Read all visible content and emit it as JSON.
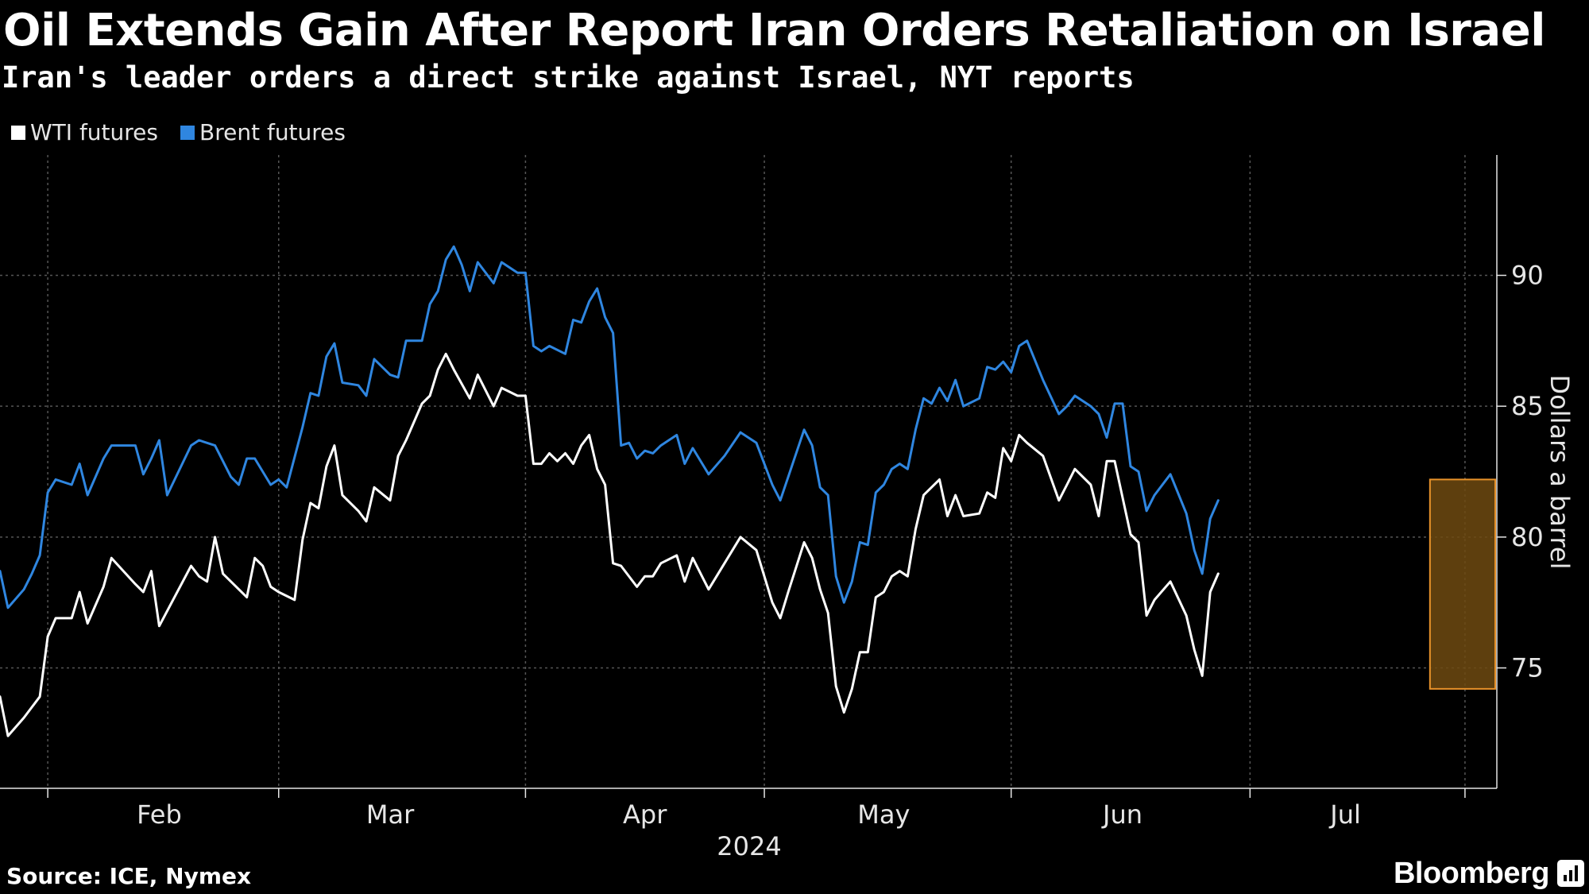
{
  "title": "Oil Extends Gain After Report Iran Orders Retaliation on Israel",
  "subtitle": "Iran's leader orders a direct strike against Israel, NYT reports",
  "source": "Source: ICE, Nymex",
  "brand": "Bloomberg",
  "colors": {
    "wti": "#ffffff",
    "brent": "#2f86e0",
    "highlight_fill": "#6e4a10",
    "highlight_stroke": "#e8922a",
    "grid": "#555555",
    "axis_text": "#e6e6e6"
  },
  "chart_data": {
    "type": "line",
    "title": "Oil Extends Gain After Report Iran Orders Retaliation on Israel",
    "subtitle": "Iran's leader orders a direct strike against Israel, NYT reports",
    "ylabel": "Dollars a barrel",
    "xlabel": "2024",
    "x_ticks": [
      "Feb",
      "Mar",
      "Apr",
      "May",
      "Jun",
      "Jul"
    ],
    "y_ticks": [
      75,
      80,
      85,
      90
    ],
    "ylim": [
      70.4,
      94.6
    ],
    "xlim": [
      "2024-01-26",
      "2024-08-01"
    ],
    "grid": true,
    "legend_position": "top-left",
    "highlight": {
      "x_start": "2024-07-24",
      "x_end": "2024-07-31",
      "y_min": 74.2,
      "y_max": 82.2
    },
    "series": [
      {
        "name": "WTI futures",
        "values": [
          [
            "2024-01-26",
            73.9
          ],
          [
            "2024-01-27",
            72.4
          ],
          [
            "2024-01-29",
            73.1
          ],
          [
            "2024-01-30",
            73.5
          ],
          [
            "2024-01-31",
            73.9
          ],
          [
            "2024-02-01",
            76.2
          ],
          [
            "2024-02-02",
            76.9
          ],
          [
            "2024-02-04",
            76.9
          ],
          [
            "2024-02-05",
            77.9
          ],
          [
            "2024-02-06",
            76.7
          ],
          [
            "2024-02-08",
            78.1
          ],
          [
            "2024-02-09",
            79.2
          ],
          [
            "2024-02-12",
            78.2
          ],
          [
            "2024-02-13",
            77.9
          ],
          [
            "2024-02-14",
            78.7
          ],
          [
            "2024-02-15",
            76.6
          ],
          [
            "2024-02-19",
            78.9
          ],
          [
            "2024-02-20",
            78.5
          ],
          [
            "2024-02-21",
            78.3
          ],
          [
            "2024-02-22",
            80.0
          ],
          [
            "2024-02-23",
            78.6
          ],
          [
            "2024-02-26",
            77.7
          ],
          [
            "2024-02-27",
            79.2
          ],
          [
            "2024-02-28",
            78.9
          ],
          [
            "2024-02-29",
            78.1
          ],
          [
            "2024-03-01",
            77.9
          ],
          [
            "2024-03-03",
            77.6
          ],
          [
            "2024-03-04",
            79.9
          ],
          [
            "2024-03-05",
            81.3
          ],
          [
            "2024-03-06",
            81.1
          ],
          [
            "2024-03-07",
            82.7
          ],
          [
            "2024-03-08",
            83.5
          ],
          [
            "2024-03-09",
            81.6
          ],
          [
            "2024-03-11",
            81.0
          ],
          [
            "2024-03-12",
            80.6
          ],
          [
            "2024-03-13",
            81.9
          ],
          [
            "2024-03-15",
            81.4
          ],
          [
            "2024-03-16",
            83.1
          ],
          [
            "2024-03-17",
            83.7
          ],
          [
            "2024-03-19",
            85.1
          ],
          [
            "2024-03-20",
            85.4
          ],
          [
            "2024-03-21",
            86.4
          ],
          [
            "2024-03-22",
            87.0
          ],
          [
            "2024-03-23",
            86.4
          ],
          [
            "2024-03-25",
            85.3
          ],
          [
            "2024-03-26",
            86.2
          ],
          [
            "2024-03-28",
            85.0
          ],
          [
            "2024-03-29",
            85.7
          ],
          [
            "2024-03-31",
            85.4
          ],
          [
            "2024-04-01",
            85.4
          ],
          [
            "2024-04-02",
            82.8
          ],
          [
            "2024-04-03",
            82.8
          ],
          [
            "2024-04-04",
            83.2
          ],
          [
            "2024-04-05",
            82.9
          ],
          [
            "2024-04-06",
            83.2
          ],
          [
            "2024-04-07",
            82.8
          ],
          [
            "2024-04-08",
            83.5
          ],
          [
            "2024-04-09",
            83.9
          ],
          [
            "2024-04-10",
            82.6
          ],
          [
            "2024-04-11",
            82.0
          ],
          [
            "2024-04-12",
            79.0
          ],
          [
            "2024-04-13",
            78.9
          ],
          [
            "2024-04-15",
            78.1
          ],
          [
            "2024-04-16",
            78.5
          ],
          [
            "2024-04-17",
            78.5
          ],
          [
            "2024-04-18",
            79.0
          ],
          [
            "2024-04-20",
            79.3
          ],
          [
            "2024-04-21",
            78.3
          ],
          [
            "2024-04-22",
            79.2
          ],
          [
            "2024-04-24",
            78.0
          ],
          [
            "2024-04-26",
            79.0
          ],
          [
            "2024-04-28",
            80.0
          ],
          [
            "2024-04-30",
            79.5
          ],
          [
            "2024-05-02",
            77.5
          ],
          [
            "2024-05-03",
            76.9
          ],
          [
            "2024-05-04",
            77.9
          ],
          [
            "2024-05-06",
            79.8
          ],
          [
            "2024-05-07",
            79.2
          ],
          [
            "2024-05-08",
            78.0
          ],
          [
            "2024-05-09",
            77.1
          ],
          [
            "2024-05-10",
            74.3
          ],
          [
            "2024-05-11",
            73.3
          ],
          [
            "2024-05-12",
            74.2
          ],
          [
            "2024-05-13",
            75.6
          ],
          [
            "2024-05-14",
            75.6
          ],
          [
            "2024-05-15",
            77.7
          ],
          [
            "2024-05-16",
            77.9
          ],
          [
            "2024-05-17",
            78.5
          ],
          [
            "2024-05-18",
            78.7
          ],
          [
            "2024-05-19",
            78.5
          ],
          [
            "2024-05-20",
            80.3
          ],
          [
            "2024-05-21",
            81.6
          ],
          [
            "2024-05-23",
            82.2
          ],
          [
            "2024-05-24",
            80.8
          ],
          [
            "2024-05-25",
            81.6
          ],
          [
            "2024-05-26",
            80.8
          ],
          [
            "2024-05-28",
            80.9
          ],
          [
            "2024-05-29",
            81.7
          ],
          [
            "2024-05-30",
            81.5
          ],
          [
            "2024-05-31",
            83.4
          ],
          [
            "2024-06-01",
            82.9
          ],
          [
            "2024-06-02",
            83.9
          ],
          [
            "2024-06-03",
            83.6
          ],
          [
            "2024-06-05",
            83.1
          ],
          [
            "2024-06-07",
            81.4
          ],
          [
            "2024-06-08",
            82.0
          ],
          [
            "2024-06-09",
            82.6
          ],
          [
            "2024-06-11",
            82.0
          ],
          [
            "2024-06-12",
            80.8
          ],
          [
            "2024-06-13",
            82.9
          ],
          [
            "2024-06-14",
            82.9
          ],
          [
            "2024-06-16",
            80.1
          ],
          [
            "2024-06-17",
            79.8
          ],
          [
            "2024-06-18",
            77.0
          ],
          [
            "2024-06-19",
            77.6
          ],
          [
            "2024-06-21",
            78.3
          ],
          [
            "2024-06-23",
            77.0
          ],
          [
            "2024-06-24",
            75.7
          ],
          [
            "2024-06-25",
            74.7
          ],
          [
            "2024-06-26",
            77.9
          ],
          [
            "2024-06-27",
            78.6
          ]
        ]
      },
      {
        "name": "Brent futures",
        "values": [
          [
            "2024-01-26",
            78.7
          ],
          [
            "2024-01-27",
            77.3
          ],
          [
            "2024-01-29",
            78.0
          ],
          [
            "2024-01-30",
            78.6
          ],
          [
            "2024-01-31",
            79.3
          ],
          [
            "2024-02-01",
            81.7
          ],
          [
            "2024-02-02",
            82.2
          ],
          [
            "2024-02-04",
            82.0
          ],
          [
            "2024-02-05",
            82.8
          ],
          [
            "2024-02-06",
            81.6
          ],
          [
            "2024-02-08",
            83.0
          ],
          [
            "2024-02-09",
            83.5
          ],
          [
            "2024-02-12",
            83.5
          ],
          [
            "2024-02-13",
            82.4
          ],
          [
            "2024-02-14",
            83.0
          ],
          [
            "2024-02-15",
            83.7
          ],
          [
            "2024-02-16",
            81.6
          ],
          [
            "2024-02-19",
            83.5
          ],
          [
            "2024-02-20",
            83.7
          ],
          [
            "2024-02-22",
            83.5
          ],
          [
            "2024-02-24",
            82.3
          ],
          [
            "2024-02-25",
            82.0
          ],
          [
            "2024-02-26",
            83.0
          ],
          [
            "2024-02-27",
            83.0
          ],
          [
            "2024-02-29",
            82.0
          ],
          [
            "2024-03-01",
            82.2
          ],
          [
            "2024-03-02",
            81.9
          ],
          [
            "2024-03-04",
            84.2
          ],
          [
            "2024-03-05",
            85.5
          ],
          [
            "2024-03-06",
            85.4
          ],
          [
            "2024-03-07",
            86.9
          ],
          [
            "2024-03-08",
            87.4
          ],
          [
            "2024-03-09",
            85.9
          ],
          [
            "2024-03-11",
            85.8
          ],
          [
            "2024-03-12",
            85.4
          ],
          [
            "2024-03-13",
            86.8
          ],
          [
            "2024-03-15",
            86.2
          ],
          [
            "2024-03-16",
            86.1
          ],
          [
            "2024-03-17",
            87.5
          ],
          [
            "2024-03-19",
            87.5
          ],
          [
            "2024-03-20",
            88.9
          ],
          [
            "2024-03-21",
            89.4
          ],
          [
            "2024-03-22",
            90.6
          ],
          [
            "2024-03-23",
            91.1
          ],
          [
            "2024-03-24",
            90.4
          ],
          [
            "2024-03-25",
            89.4
          ],
          [
            "2024-03-26",
            90.5
          ],
          [
            "2024-03-28",
            89.7
          ],
          [
            "2024-03-29",
            90.5
          ],
          [
            "2024-03-31",
            90.1
          ],
          [
            "2024-04-01",
            90.1
          ],
          [
            "2024-04-02",
            87.3
          ],
          [
            "2024-04-03",
            87.1
          ],
          [
            "2024-04-04",
            87.3
          ],
          [
            "2024-04-06",
            87.0
          ],
          [
            "2024-04-07",
            88.3
          ],
          [
            "2024-04-08",
            88.2
          ],
          [
            "2024-04-09",
            89.0
          ],
          [
            "2024-04-10",
            89.5
          ],
          [
            "2024-04-11",
            88.4
          ],
          [
            "2024-04-12",
            87.8
          ],
          [
            "2024-04-13",
            83.5
          ],
          [
            "2024-04-14",
            83.6
          ],
          [
            "2024-04-15",
            83.0
          ],
          [
            "2024-04-16",
            83.3
          ],
          [
            "2024-04-17",
            83.2
          ],
          [
            "2024-04-18",
            83.5
          ],
          [
            "2024-04-20",
            83.9
          ],
          [
            "2024-04-21",
            82.8
          ],
          [
            "2024-04-22",
            83.4
          ],
          [
            "2024-04-24",
            82.4
          ],
          [
            "2024-04-26",
            83.1
          ],
          [
            "2024-04-28",
            84.0
          ],
          [
            "2024-04-30",
            83.6
          ],
          [
            "2024-05-02",
            82.0
          ],
          [
            "2024-05-03",
            81.4
          ],
          [
            "2024-05-04",
            82.3
          ],
          [
            "2024-05-06",
            84.1
          ],
          [
            "2024-05-07",
            83.5
          ],
          [
            "2024-05-08",
            81.9
          ],
          [
            "2024-05-09",
            81.6
          ],
          [
            "2024-05-10",
            78.5
          ],
          [
            "2024-05-11",
            77.5
          ],
          [
            "2024-05-12",
            78.3
          ],
          [
            "2024-05-13",
            79.8
          ],
          [
            "2024-05-14",
            79.7
          ],
          [
            "2024-05-15",
            81.7
          ],
          [
            "2024-05-16",
            82.0
          ],
          [
            "2024-05-17",
            82.6
          ],
          [
            "2024-05-18",
            82.8
          ],
          [
            "2024-05-19",
            82.6
          ],
          [
            "2024-05-20",
            84.1
          ],
          [
            "2024-05-21",
            85.3
          ],
          [
            "2024-05-22",
            85.1
          ],
          [
            "2024-05-23",
            85.7
          ],
          [
            "2024-05-24",
            85.2
          ],
          [
            "2024-05-25",
            86.0
          ],
          [
            "2024-05-26",
            85.0
          ],
          [
            "2024-05-28",
            85.3
          ],
          [
            "2024-05-29",
            86.5
          ],
          [
            "2024-05-30",
            86.4
          ],
          [
            "2024-05-31",
            86.7
          ],
          [
            "2024-06-01",
            86.3
          ],
          [
            "2024-06-02",
            87.3
          ],
          [
            "2024-06-03",
            87.5
          ],
          [
            "2024-06-05",
            86.0
          ],
          [
            "2024-06-07",
            84.7
          ],
          [
            "2024-06-08",
            85.0
          ],
          [
            "2024-06-09",
            85.4
          ],
          [
            "2024-06-11",
            85.0
          ],
          [
            "2024-06-12",
            84.7
          ],
          [
            "2024-06-13",
            83.8
          ],
          [
            "2024-06-14",
            85.1
          ],
          [
            "2024-06-15",
            85.1
          ],
          [
            "2024-06-16",
            82.7
          ],
          [
            "2024-06-17",
            82.5
          ],
          [
            "2024-06-18",
            81.0
          ],
          [
            "2024-06-19",
            81.6
          ],
          [
            "2024-06-21",
            82.4
          ],
          [
            "2024-06-23",
            80.9
          ],
          [
            "2024-06-24",
            79.5
          ],
          [
            "2024-06-25",
            78.6
          ],
          [
            "2024-06-26",
            80.7
          ],
          [
            "2024-06-27",
            81.4
          ]
        ]
      }
    ]
  }
}
